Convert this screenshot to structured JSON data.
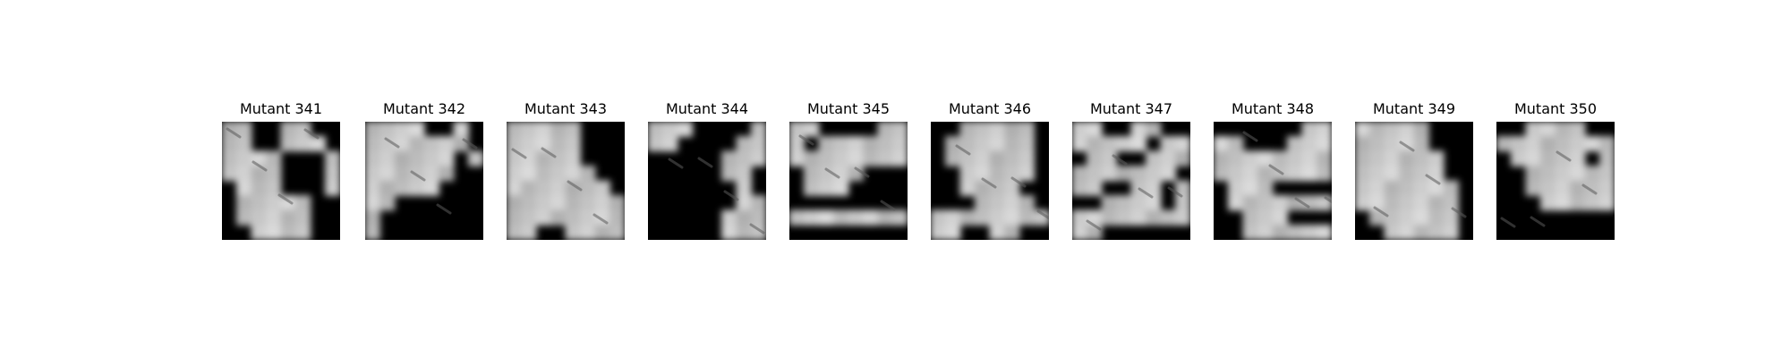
{
  "figure": {
    "panels": [
      {
        "title": "Mutant 341",
        "blocks": [
          [
            1,
            1,
            0,
            0,
            1,
            1,
            0,
            0
          ],
          [
            1,
            1,
            0,
            0,
            1,
            1,
            1,
            0
          ],
          [
            1,
            1,
            1,
            1,
            0,
            0,
            0,
            1
          ],
          [
            1,
            1,
            1,
            1,
            0,
            0,
            0,
            1
          ],
          [
            0,
            1,
            1,
            1,
            0,
            0,
            0,
            1
          ],
          [
            0,
            1,
            1,
            1,
            1,
            1,
            0,
            0
          ],
          [
            0,
            1,
            1,
            1,
            1,
            1,
            0,
            0
          ],
          [
            0,
            0,
            1,
            1,
            1,
            1,
            0,
            0
          ]
        ]
      },
      {
        "title": "Mutant 342",
        "blocks": [
          [
            1,
            1,
            1,
            1,
            0,
            0,
            1,
            0
          ],
          [
            1,
            1,
            1,
            1,
            1,
            1,
            1,
            0
          ],
          [
            1,
            1,
            1,
            1,
            1,
            1,
            0,
            1
          ],
          [
            1,
            1,
            1,
            1,
            1,
            1,
            0,
            0
          ],
          [
            1,
            1,
            1,
            1,
            1,
            0,
            0,
            0
          ],
          [
            1,
            1,
            0,
            0,
            0,
            0,
            0,
            0
          ],
          [
            1,
            0,
            0,
            0,
            0,
            0,
            0,
            0
          ],
          [
            1,
            0,
            0,
            0,
            0,
            0,
            0,
            0
          ]
        ]
      },
      {
        "title": "Mutant 343",
        "blocks": [
          [
            1,
            1,
            1,
            1,
            1,
            0,
            0,
            0
          ],
          [
            1,
            1,
            1,
            1,
            1,
            0,
            0,
            0
          ],
          [
            1,
            1,
            1,
            1,
            1,
            0,
            0,
            0
          ],
          [
            1,
            1,
            1,
            1,
            1,
            1,
            0,
            0
          ],
          [
            1,
            1,
            1,
            1,
            1,
            1,
            1,
            0
          ],
          [
            1,
            1,
            1,
            1,
            1,
            1,
            1,
            1
          ],
          [
            1,
            1,
            1,
            1,
            1,
            1,
            1,
            1
          ],
          [
            1,
            1,
            0,
            0,
            1,
            1,
            1,
            1
          ]
        ]
      },
      {
        "title": "Mutant 344",
        "blocks": [
          [
            1,
            1,
            1,
            0,
            0,
            0,
            0,
            1
          ],
          [
            1,
            1,
            0,
            0,
            0,
            0,
            1,
            1
          ],
          [
            0,
            0,
            0,
            0,
            0,
            1,
            1,
            1
          ],
          [
            0,
            0,
            0,
            0,
            0,
            1,
            1,
            0
          ],
          [
            0,
            0,
            0,
            0,
            0,
            0,
            1,
            0
          ],
          [
            0,
            0,
            0,
            0,
            0,
            0,
            1,
            1
          ],
          [
            0,
            0,
            0,
            0,
            0,
            1,
            1,
            1
          ],
          [
            0,
            0,
            0,
            0,
            0,
            1,
            1,
            1
          ]
        ]
      },
      {
        "title": "Mutant 345",
        "blocks": [
          [
            1,
            1,
            0,
            0,
            0,
            0,
            1,
            1
          ],
          [
            1,
            0,
            1,
            1,
            1,
            1,
            1,
            1
          ],
          [
            1,
            1,
            1,
            1,
            1,
            1,
            1,
            1
          ],
          [
            0,
            1,
            1,
            1,
            1,
            0,
            0,
            0
          ],
          [
            0,
            1,
            1,
            1,
            0,
            0,
            0,
            0
          ],
          [
            0,
            0,
            0,
            0,
            0,
            0,
            0,
            0
          ],
          [
            1,
            1,
            1,
            1,
            1,
            1,
            1,
            1
          ],
          [
            0,
            0,
            0,
            0,
            0,
            0,
            0,
            0
          ]
        ]
      },
      {
        "title": "Mutant 346",
        "blocks": [
          [
            0,
            0,
            1,
            1,
            1,
            1,
            1,
            0
          ],
          [
            0,
            1,
            1,
            1,
            1,
            1,
            1,
            0
          ],
          [
            0,
            1,
            1,
            1,
            1,
            1,
            1,
            0
          ],
          [
            0,
            0,
            1,
            1,
            1,
            1,
            1,
            0
          ],
          [
            0,
            0,
            1,
            1,
            1,
            1,
            0,
            0
          ],
          [
            0,
            0,
            0,
            1,
            1,
            1,
            1,
            0
          ],
          [
            1,
            1,
            1,
            1,
            1,
            1,
            1,
            1
          ],
          [
            1,
            1,
            0,
            0,
            1,
            1,
            0,
            0
          ]
        ]
      },
      {
        "title": "Mutant 347",
        "blocks": [
          [
            1,
            1,
            0,
            0,
            1,
            1,
            0,
            0
          ],
          [
            1,
            1,
            1,
            1,
            1,
            0,
            1,
            1
          ],
          [
            0,
            1,
            1,
            0,
            0,
            1,
            1,
            1
          ],
          [
            1,
            1,
            1,
            1,
            1,
            1,
            1,
            0
          ],
          [
            1,
            1,
            0,
            0,
            1,
            1,
            0,
            1
          ],
          [
            0,
            0,
            1,
            1,
            1,
            1,
            0,
            1
          ],
          [
            1,
            1,
            1,
            1,
            1,
            1,
            1,
            1
          ],
          [
            1,
            1,
            0,
            0,
            0,
            0,
            0,
            0
          ]
        ]
      },
      {
        "title": "Mutant 348",
        "blocks": [
          [
            0,
            0,
            0,
            0,
            0,
            0,
            1,
            1
          ],
          [
            1,
            1,
            0,
            0,
            0,
            1,
            1,
            1
          ],
          [
            1,
            1,
            1,
            1,
            1,
            1,
            1,
            1
          ],
          [
            1,
            1,
            1,
            1,
            1,
            1,
            1,
            1
          ],
          [
            0,
            1,
            1,
            1,
            0,
            0,
            0,
            0
          ],
          [
            0,
            1,
            1,
            1,
            1,
            1,
            1,
            1
          ],
          [
            0,
            0,
            1,
            1,
            1,
            0,
            0,
            0
          ],
          [
            0,
            0,
            1,
            1,
            1,
            1,
            1,
            1
          ]
        ]
      },
      {
        "title": "Mutant 349",
        "blocks": [
          [
            1,
            1,
            1,
            1,
            1,
            0,
            0,
            0
          ],
          [
            1,
            1,
            1,
            1,
            1,
            0,
            0,
            0
          ],
          [
            1,
            1,
            1,
            1,
            1,
            1,
            0,
            0
          ],
          [
            1,
            1,
            1,
            1,
            1,
            1,
            0,
            0
          ],
          [
            1,
            1,
            1,
            1,
            1,
            1,
            1,
            0
          ],
          [
            1,
            1,
            1,
            1,
            1,
            1,
            1,
            0
          ],
          [
            0,
            1,
            1,
            1,
            1,
            1,
            1,
            0
          ],
          [
            0,
            0,
            1,
            1,
            1,
            1,
            1,
            0
          ]
        ]
      },
      {
        "title": "Mutant 350",
        "blocks": [
          [
            0,
            0,
            1,
            1,
            1,
            1,
            0,
            0
          ],
          [
            1,
            1,
            1,
            1,
            1,
            1,
            1,
            1
          ],
          [
            0,
            1,
            1,
            1,
            1,
            1,
            0,
            1
          ],
          [
            0,
            0,
            1,
            1,
            1,
            1,
            1,
            1
          ],
          [
            0,
            0,
            1,
            1,
            1,
            1,
            1,
            1
          ],
          [
            0,
            0,
            0,
            1,
            1,
            1,
            1,
            1
          ],
          [
            0,
            0,
            0,
            0,
            0,
            0,
            0,
            0
          ],
          [
            0,
            0,
            0,
            0,
            0,
            0,
            0,
            0
          ]
        ]
      }
    ]
  }
}
